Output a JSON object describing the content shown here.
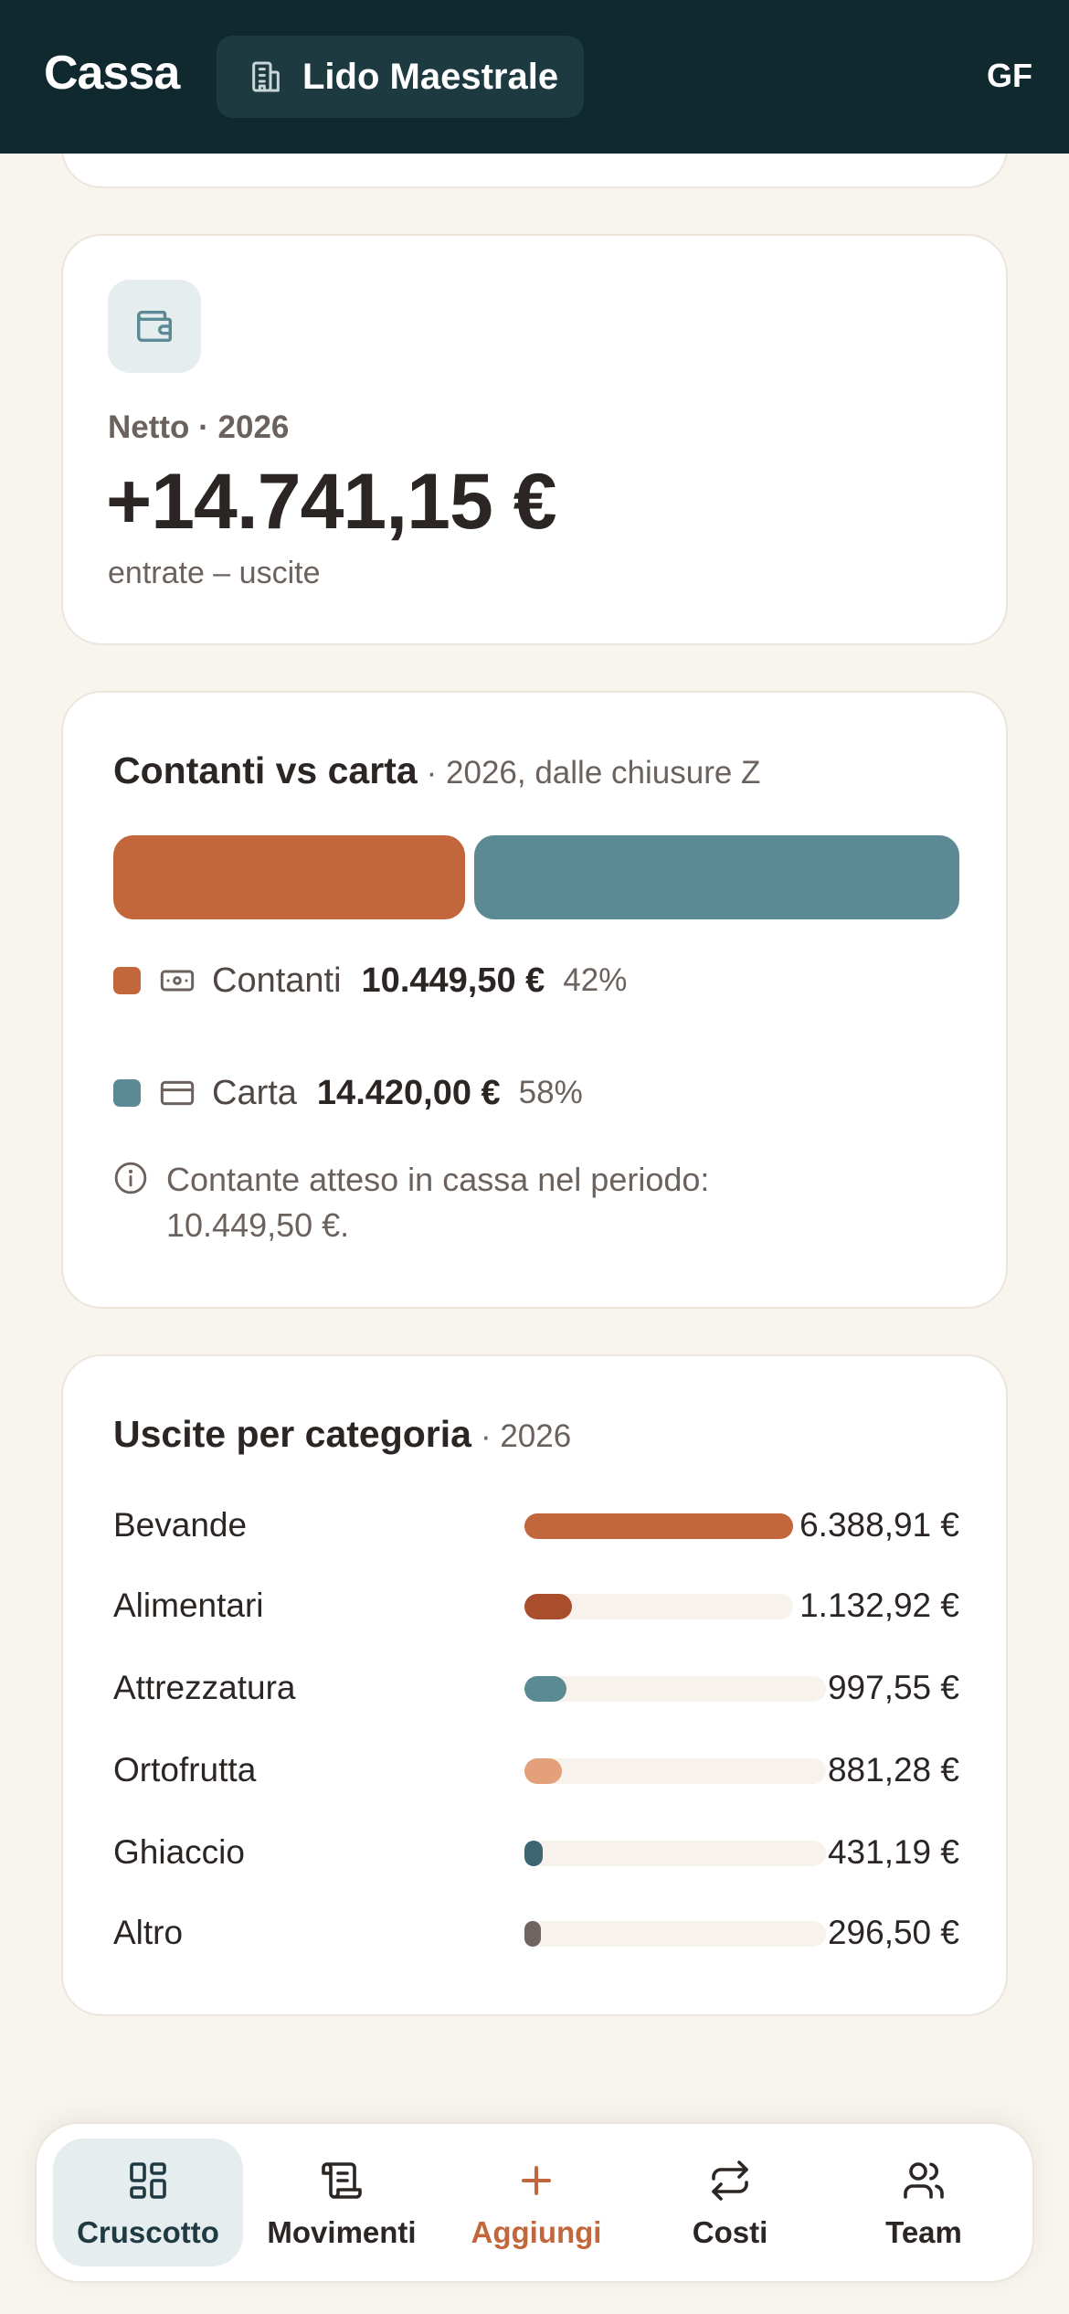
{
  "header": {
    "brand": "Cassa",
    "location": "Lido Maestrale",
    "user_initials": "GF",
    "location_icon": "building-icon"
  },
  "net_card": {
    "icon": "wallet-icon",
    "label": "Netto · 2026",
    "value": "+14.741,15 €",
    "subtitle": "entrate – uscite"
  },
  "payment_split": {
    "title": "Contanti vs carta",
    "subtitle": "· 2026, dalle chiusure Z",
    "cash": {
      "label": "Contanti",
      "amount": "10.449,50 €",
      "percent": "42%",
      "share": 0.42,
      "color": "#c2673c",
      "icon": "banknote-icon"
    },
    "card": {
      "label": "Carta",
      "amount": "14.420,00 €",
      "percent": "58%",
      "share": 0.58,
      "color": "#5b8a94",
      "icon": "credit-card-icon"
    },
    "note": "Contante atteso in cassa nel periodo: 10.449,50 €."
  },
  "expenses": {
    "title": "Uscite per categoria",
    "subtitle": "· 2026",
    "categories": [
      {
        "name": "Bevande",
        "amount": "6.388,91 €",
        "value": 6388.91,
        "color": "#c2673c"
      },
      {
        "name": "Alimentari",
        "amount": "1.132,92 €",
        "value": 1132.92,
        "color": "#a94e2c"
      },
      {
        "name": "Attrezzatura",
        "amount": "997,55 €",
        "value": 997.55,
        "color": "#5b8a94"
      },
      {
        "name": "Ortofrutta",
        "amount": "881,28 €",
        "value": 881.28,
        "color": "#e4a07a"
      },
      {
        "name": "Ghiaccio",
        "amount": "431,19 €",
        "value": 431.19,
        "color": "#3d6572"
      },
      {
        "name": "Altro",
        "amount": "296,50 €",
        "value": 296.5,
        "color": "#6e6560"
      }
    ]
  },
  "tabbar": {
    "items": [
      {
        "label": "Cruscotto",
        "icon": "dashboard-icon",
        "active": true
      },
      {
        "label": "Movimenti",
        "icon": "receipt-icon",
        "active": false
      },
      {
        "label": "Aggiungi",
        "icon": "plus-icon",
        "active": false
      },
      {
        "label": "Costi",
        "icon": "repeat-icon",
        "active": false
      },
      {
        "label": "Team",
        "icon": "users-icon",
        "active": false
      }
    ]
  }
}
